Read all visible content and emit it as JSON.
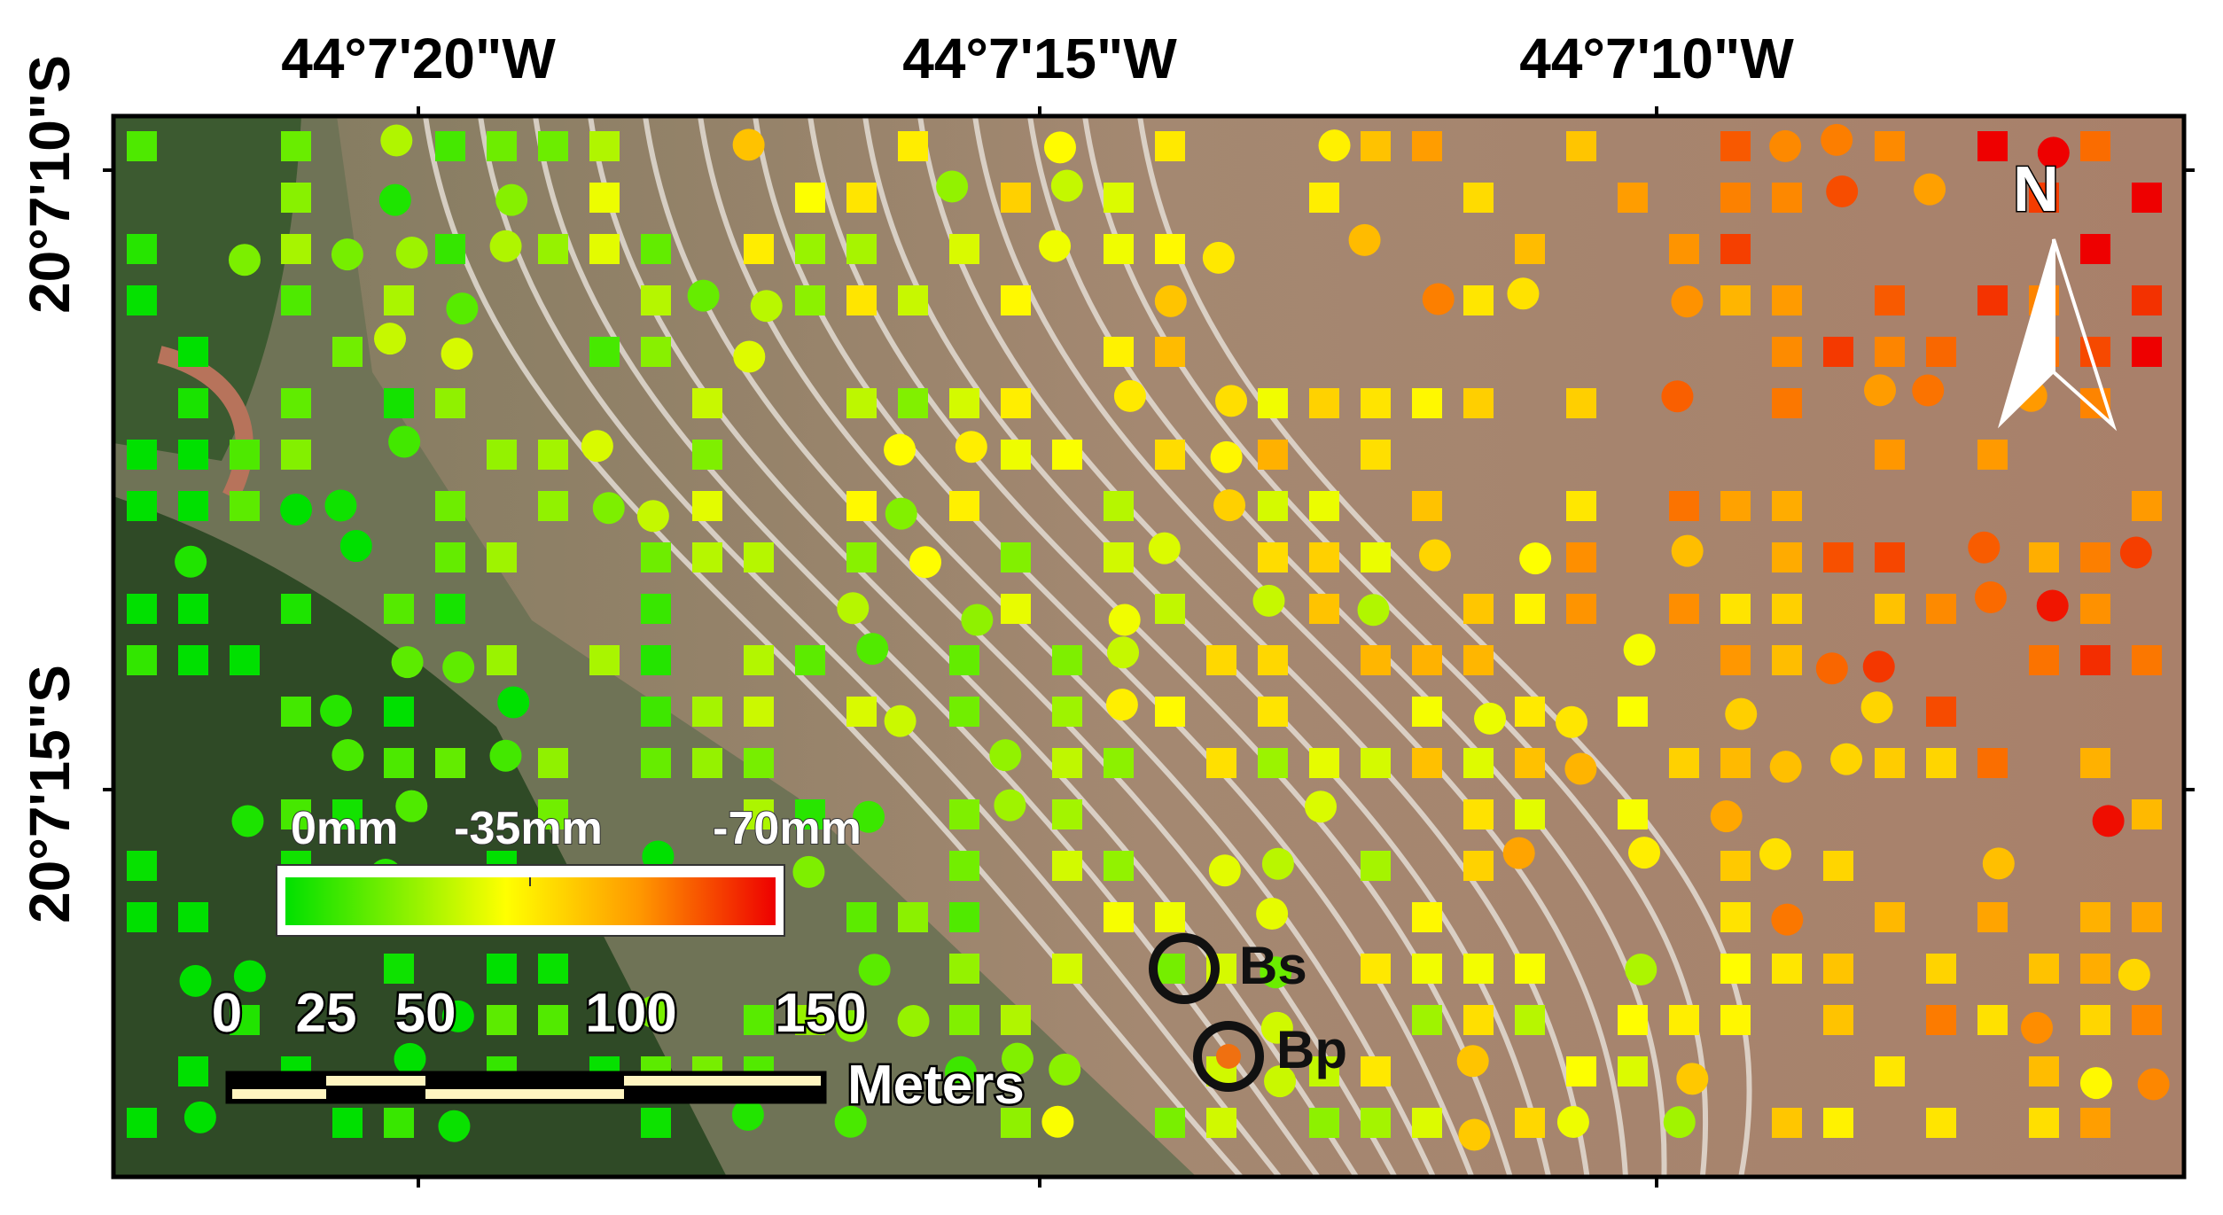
{
  "map": {
    "longitude_labels": [
      "44°7'20\"W",
      "44°7'15\"W",
      "44°7'10\"W"
    ],
    "latitude_labels": [
      "20°7'10\"S",
      "20°7'15\"S"
    ],
    "colorbar_labels": [
      "0mm",
      "-35mm",
      "-70mm"
    ],
    "scale_labels": [
      "0",
      "25",
      "50",
      "100",
      "150"
    ],
    "scale_unit": "Meters",
    "north_label": "N",
    "markers": [
      "Bs",
      "Bp"
    ]
  }
}
